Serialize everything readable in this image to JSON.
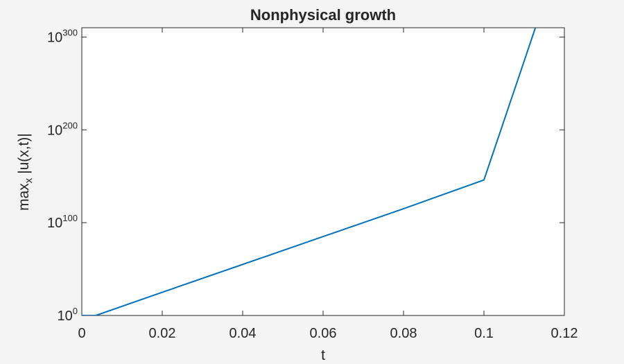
{
  "chart_data": {
    "type": "line",
    "title": "Nonphysical growth",
    "xlabel": "t",
    "ylabel": {
      "base": "max",
      "subscript": "x",
      "rest": " |u(x,t)|"
    },
    "xlim": [
      0,
      0.12
    ],
    "ylim_log10": [
      0,
      310
    ],
    "yscale": "log",
    "grid": false,
    "x_ticks": [
      "0",
      "0.02",
      "0.04",
      "0.06",
      "0.08",
      "0.1",
      "0.12"
    ],
    "x_tick_values": [
      0,
      0.02,
      0.04,
      0.06,
      0.08,
      0.1,
      0.12
    ],
    "y_ticks": [
      {
        "base": "10",
        "exp": "0",
        "log10": 0
      },
      {
        "base": "10",
        "exp": "100",
        "log10": 100
      },
      {
        "base": "10",
        "exp": "200",
        "log10": 200
      },
      {
        "base": "10",
        "exp": "300",
        "log10": 300
      }
    ],
    "series": [
      {
        "color": "#0072bd",
        "x": [
          0,
          0.0035,
          0.02,
          0.04,
          0.06,
          0.08,
          0.1,
          0.1128
        ],
        "log10_y": [
          0,
          0,
          25,
          55,
          85,
          115,
          146,
          310
        ]
      }
    ]
  }
}
